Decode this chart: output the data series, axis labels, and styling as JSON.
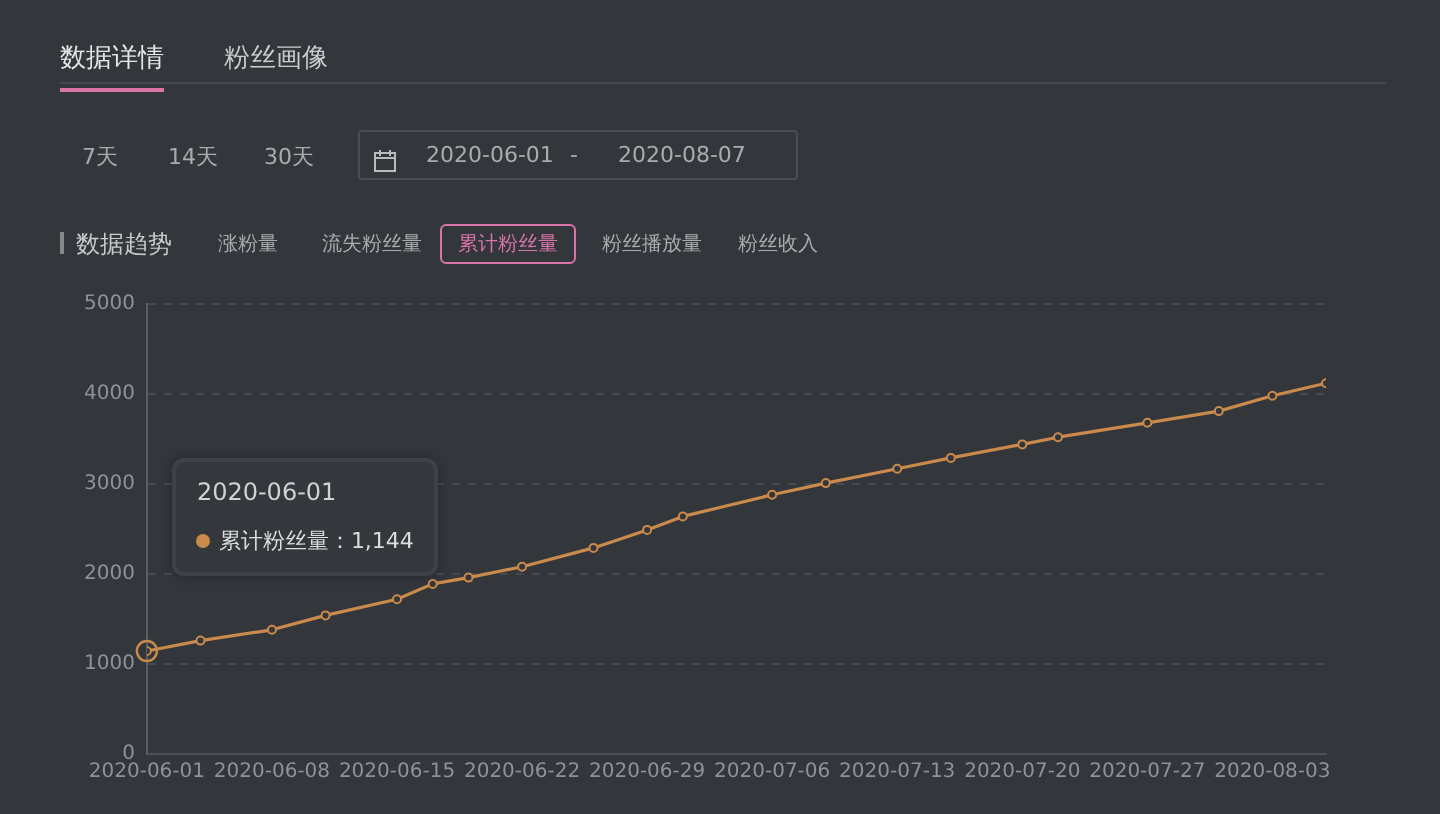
{
  "chart_data": {
    "type": "line",
    "title": "数据趋势",
    "x": [
      "2020-06-01",
      "2020-06-04",
      "2020-06-08",
      "2020-06-11",
      "2020-06-15",
      "2020-06-17",
      "2020-06-19",
      "2020-06-22",
      "2020-06-26",
      "2020-06-29",
      "2020-07-01",
      "2020-07-06",
      "2020-07-09",
      "2020-07-13",
      "2020-07-16",
      "2020-07-20",
      "2020-07-22",
      "2020-07-27",
      "2020-07-31",
      "2020-08-03",
      "2020-08-06"
    ],
    "series": [
      {
        "name": "累计粉丝量",
        "color": "#c98a4b",
        "values": [
          1144,
          1260,
          1380,
          1540,
          1720,
          1890,
          1960,
          2080,
          2290,
          2490,
          2640,
          2880,
          3010,
          3170,
          3290,
          3440,
          3520,
          3680,
          3810,
          3980,
          4120
        ]
      }
    ],
    "xlim": [
      "2020-06-01",
      "2020-08-06"
    ],
    "xticks": [
      "2020-06-01",
      "2020-06-08",
      "2020-06-15",
      "2020-06-22",
      "2020-06-29",
      "2020-07-06",
      "2020-07-13",
      "2020-07-20",
      "2020-07-27",
      "2020-08-03"
    ],
    "ylim": [
      0,
      5000
    ],
    "yticks": [
      0,
      1000,
      2000,
      3000,
      4000,
      5000
    ],
    "grid": "y",
    "legend": "left",
    "marker": "circle",
    "line_style": "solid",
    "annotations": [
      "数据详情",
      "粉丝画像",
      "7天",
      "14天",
      "30天",
      "2020-06-01",
      "-",
      "2020-08-07",
      "涨粉量",
      "流失粉丝量",
      "累计粉丝量",
      "粉丝播放量",
      "粉丝收入",
      "：1,144"
    ]
  }
}
